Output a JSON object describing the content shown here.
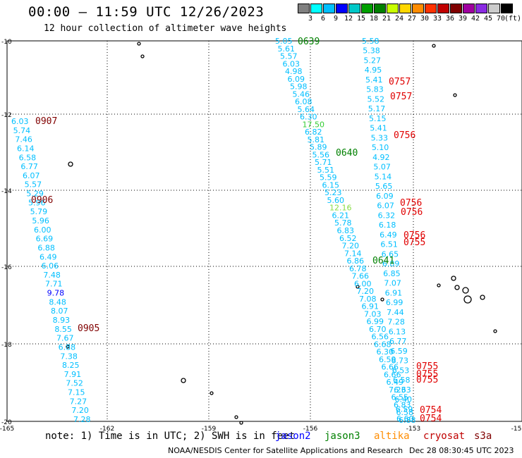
{
  "header": {
    "title": "00:00 — 11:59 UTC 12/26/2023",
    "subtitle": "12 hour collection of altimeter wave heights"
  },
  "legend": {
    "unit": "(ft)",
    "colors": [
      "#808080",
      "#00ffff",
      "#00bfff",
      "#0000ff",
      "#00c8c8",
      "#00a000",
      "#008000",
      "#c8ff00",
      "#ffd700",
      "#ff8c00",
      "#ff3300",
      "#c00000",
      "#800000",
      "#a000a0",
      "#8a2be2",
      "#cccccc",
      "#000000"
    ],
    "labels": [
      "3",
      "6",
      "9",
      "12",
      "15",
      "18",
      "21",
      "24",
      "27",
      "30",
      "33",
      "36",
      "39",
      "42",
      "45",
      "70"
    ]
  },
  "axes": {
    "lat_labels": [
      "-10",
      "-12",
      "-14",
      "-16",
      "-18",
      "-20"
    ],
    "lon_labels": [
      "-165",
      "-162",
      "-159",
      "-156",
      "-153",
      "-15"
    ]
  },
  "times": [
    {
      "text": "0639",
      "color": "#008000"
    },
    {
      "text": "0757",
      "color": "#e00000"
    },
    {
      "text": "0757",
      "color": "#e00000"
    },
    {
      "text": "0907",
      "color": "#800000"
    },
    {
      "text": "0756",
      "color": "#e00000"
    },
    {
      "text": "0640",
      "color": "#008000"
    },
    {
      "text": "0906",
      "color": "#800000"
    },
    {
      "text": "0756",
      "color": "#e00000"
    },
    {
      "text": "0756",
      "color": "#e00000"
    },
    {
      "text": "0756",
      "color": "#e00000"
    },
    {
      "text": "0755",
      "color": "#e00000"
    },
    {
      "text": "0641",
      "color": "#008000"
    },
    {
      "text": "0905",
      "color": "#800000"
    },
    {
      "text": "0755",
      "color": "#e00000"
    },
    {
      "text": "0755",
      "color": "#e00000"
    },
    {
      "text": "0755",
      "color": "#e00000"
    },
    {
      "text": "0754",
      "color": "#e00000"
    },
    {
      "text": "0754",
      "color": "#e00000"
    }
  ],
  "tracks": {
    "cryosat_left": [
      "6.03",
      "5.74",
      "7.46",
      "6.14",
      "6.58",
      "6.77",
      "6.07",
      "5.57",
      "5.29",
      "5.96",
      "5.79",
      "5.96",
      "6.00",
      "6.69",
      "6.88",
      "6.49",
      "6.06",
      "7.48",
      "7.71",
      "9.78",
      "8.48",
      "8.07",
      "8.93",
      "8.55",
      "7.67",
      "6.88",
      "7.38",
      "8.25",
      "7.91",
      "7.52",
      "7.15",
      "7.27",
      "7.20",
      "7.28"
    ],
    "jason3": [
      "5.05",
      "5.61",
      "5.57",
      "6.03",
      "4.98",
      "6.09",
      "5.98",
      "5.46",
      "6.08",
      "5.64",
      "6.30",
      "17.50",
      "6.82",
      "5.81",
      "5.89",
      "5.56",
      "5.71",
      "5.51",
      "5.59",
      "6.15",
      "5.23",
      "5.60",
      "12.16",
      "6.21",
      "5.78",
      "6.83",
      "6.52",
      "7.20",
      "7.14",
      "6.86",
      "6.78",
      "7.66",
      "6.00",
      "7.20",
      "7.08",
      "6.91",
      "7.03",
      "6.99",
      "6.70",
      "6.56",
      "6.68",
      "6.30",
      "6.59",
      "6.66",
      "6.66",
      "6.49",
      "7.23",
      "6.55",
      "6.83",
      "6.58",
      "6.88"
    ],
    "cryosat_right": [
      "5.58",
      "5.38",
      "5.27",
      "4.95",
      "5.41",
      "5.83",
      "5.52",
      "5.17",
      "5.15",
      "5.41",
      "5.33",
      "5.10",
      "4.92",
      "5.07",
      "5.14",
      "5.65",
      "6.09",
      "6.07",
      "6.32",
      "6.18",
      "6.49",
      "6.51",
      "6.65",
      "6.89",
      "6.85",
      "7.07",
      "6.91",
      "6.99",
      "7.44",
      "7.28",
      "6.13",
      "6.77",
      "6.59",
      "6.73",
      "6.53",
      "6.58",
      "6.63",
      "6.40",
      "6.59",
      "6.60"
    ]
  },
  "notes": {
    "note": "note: 1) Time is in UTC; 2) SWH is in feet",
    "jason2": "jason2",
    "jason3": "jason3",
    "altika": "altika",
    "cryosat": "cryosat",
    "s3a": "s3a",
    "credit": "NOAA/NESDIS Center for Satellite Applications and Research",
    "stamp": "Dec 28 08:30:45 UTC 2023"
  }
}
